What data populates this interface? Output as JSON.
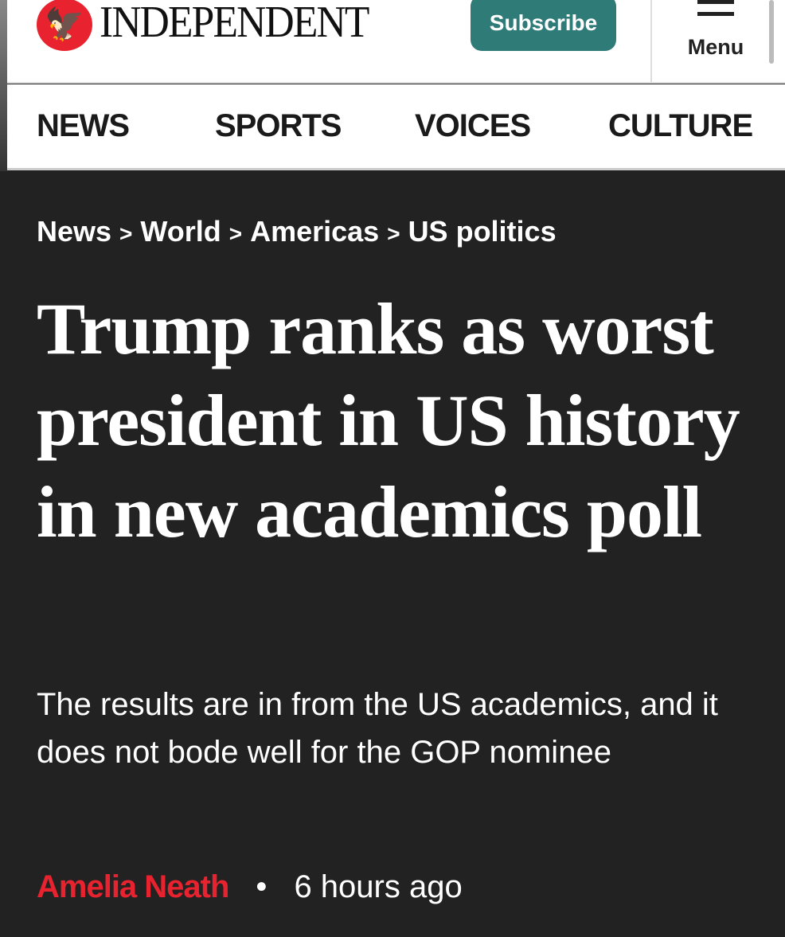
{
  "header": {
    "logo_text": "INDEPENDENT",
    "logo_icon": "eagle-icon",
    "subscribe_label": "Subscribe",
    "menu_label": "Menu"
  },
  "nav": {
    "items": [
      "NEWS",
      "SPORTS",
      "VOICES",
      "CULTURE"
    ]
  },
  "breadcrumb": [
    "News",
    "World",
    "Americas",
    "US politics"
  ],
  "breadcrumb_separator": ">",
  "article": {
    "headline": "Trump ranks as worst president in US history in new academics poll",
    "standfirst": "The results are in from the US academics, and it does not bode well for the GOP nominee",
    "author": "Amelia Neath",
    "time": "6 hours ago",
    "separator": "•"
  },
  "colors": {
    "brand_red": "#e8222e",
    "subscribe_teal": "#2f7b78",
    "background": "#222222"
  }
}
